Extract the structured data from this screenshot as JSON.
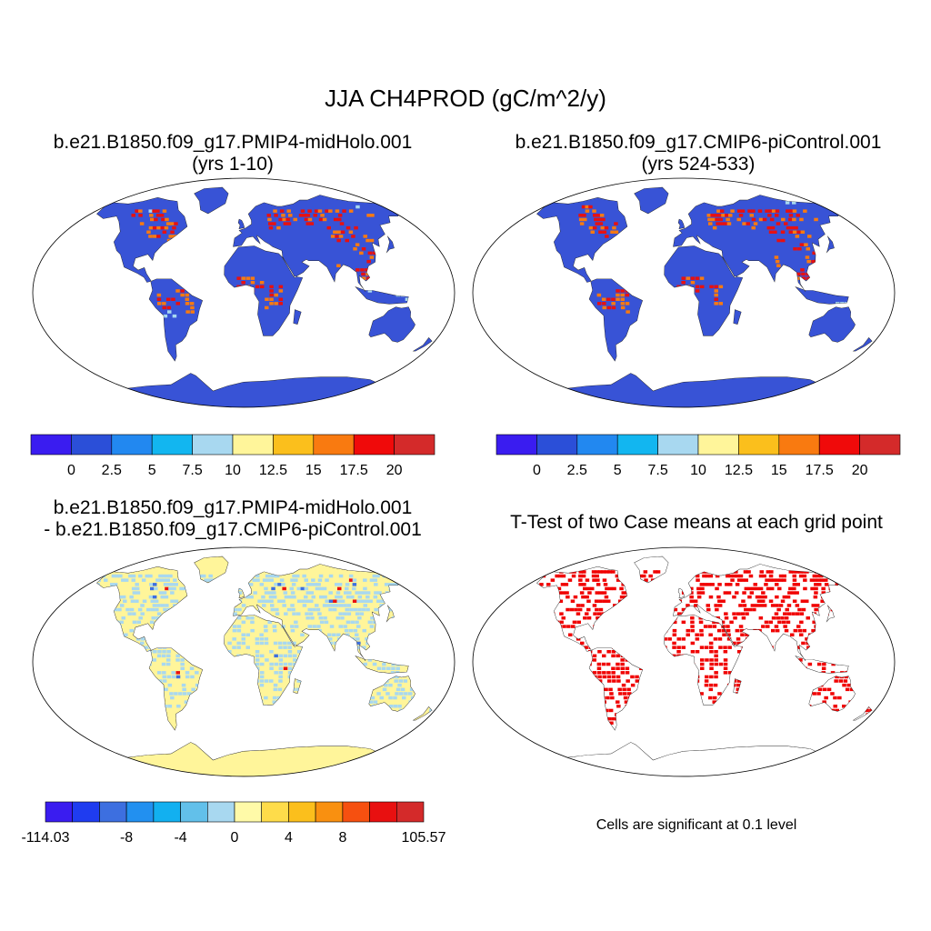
{
  "title": "JJA CH4PROD (gC/m^2/y)",
  "panels": [
    {
      "id": "p1",
      "title_line1": "b.e21.B1850.f09_g17.PMIP4-midHolo.001",
      "title_line2": "(yrs 1-10)"
    },
    {
      "id": "p2",
      "title_line1": "b.e21.B1850.f09_g17.CMIP6-piControl.001",
      "title_line2": "(yrs 524-533)"
    },
    {
      "id": "p3",
      "title_line1": "b.e21.B1850.f09_g17.PMIP4-midHolo.001",
      "title_line2": "- b.e21.B1850.f09_g17.CMIP6-piControl.001"
    },
    {
      "id": "p4",
      "title_line1": "T-Test of two Case means at each grid point"
    }
  ],
  "note": "Cells are significant at 0.1 level",
  "colorbars": {
    "field": {
      "colors": [
        "#3a1cf0",
        "#2b4fd8",
        "#2288f0",
        "#12b6f0",
        "#a8d8f0",
        "#fff59a",
        "#fbbf1c",
        "#f97a10",
        "#f00a0a",
        "#d42a2a"
      ],
      "labels": [
        "0",
        "2.5",
        "5",
        "7.5",
        "10",
        "12.5",
        "15",
        "17.5",
        "20"
      ]
    },
    "diff": {
      "colors": [
        "#3a1cf0",
        "#1f3cf0",
        "#3d6fe0",
        "#2290f0",
        "#12b0f0",
        "#62c0ea",
        "#a8d8f0",
        "#fffaa8",
        "#fedc4a",
        "#fbbf1c",
        "#f99010",
        "#f65010",
        "#e81010",
        "#d42a2a"
      ],
      "labels": [
        "-114.03",
        "-8",
        "-4",
        "0",
        "4",
        "8",
        "105.57"
      ]
    }
  },
  "map_colors": {
    "ocean": "#ffffff",
    "field_land": "#3853d6",
    "diff_land": "#fff59a",
    "diff_speckle": "#a8d8f0",
    "ttest_land": "#ffffff",
    "ttest_signif": "#f00000",
    "hotspot": "#e81010",
    "warm": "#f97a10",
    "cool": "#a8d8f0"
  }
}
